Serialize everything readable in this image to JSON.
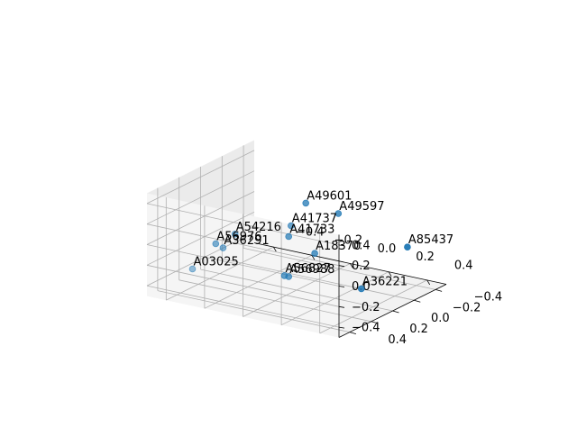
{
  "chart_data": {
    "type": "scatter",
    "projection": "3d",
    "title": "",
    "xlabel": "",
    "ylabel": "",
    "zlabel": "",
    "grid": true,
    "legend": "none",
    "marker_color": "#1f77b4",
    "pane_color": "#f2f2f2",
    "xlim": [
      -0.5,
      0.5
    ],
    "ylim": [
      -0.5,
      0.5
    ],
    "zlim": [
      -0.5,
      0.5
    ],
    "xticks": [
      "−0.4",
      "−0.2",
      "0.0",
      "0.2",
      "0.4"
    ],
    "yticks": [
      "−0.4",
      "−0.2",
      "0.0",
      "0.2",
      "0.4"
    ],
    "zticks": [
      "−0.4",
      "−0.2",
      "0.0",
      "0.2",
      "0.4"
    ],
    "points": [
      {
        "label": "A41737",
        "x": 0.2,
        "y": 0.41,
        "z": 0.42
      },
      {
        "label": "A49601",
        "x": 0.02,
        "y": -0.05,
        "z": 0.33
      },
      {
        "label": "A49597",
        "x": 0.29,
        "y": 0.13,
        "z": 0.43
      },
      {
        "label": "A54216",
        "x": -0.22,
        "y": 0.18,
        "z": 0.05
      },
      {
        "label": "A41733",
        "x": -0.03,
        "y": 0.02,
        "z": 0.02
      },
      {
        "label": "A36291",
        "x": -0.26,
        "y": 0.22,
        "z": -0.08
      },
      {
        "label": "A18370",
        "x": 0.15,
        "y": 0.1,
        "z": -0.03
      },
      {
        "label": "A03025",
        "x": -0.33,
        "y": 0.38,
        "z": -0.23
      },
      {
        "label": "A56827",
        "x": -0.03,
        "y": 0.06,
        "z": -0.34
      },
      {
        "label": "A56988",
        "x": -0.03,
        "y": 0.02,
        "z": -0.37
      },
      {
        "label": "A56976",
        "x": -0.46,
        "y": -0.07,
        "z": -0.27
      },
      {
        "label": "A85437",
        "x": 0.32,
        "y": -0.46,
        "z": -0.19
      },
      {
        "label": "A36221",
        "x": 0.27,
        "y": -0.12,
        "z": -0.44
      }
    ]
  }
}
